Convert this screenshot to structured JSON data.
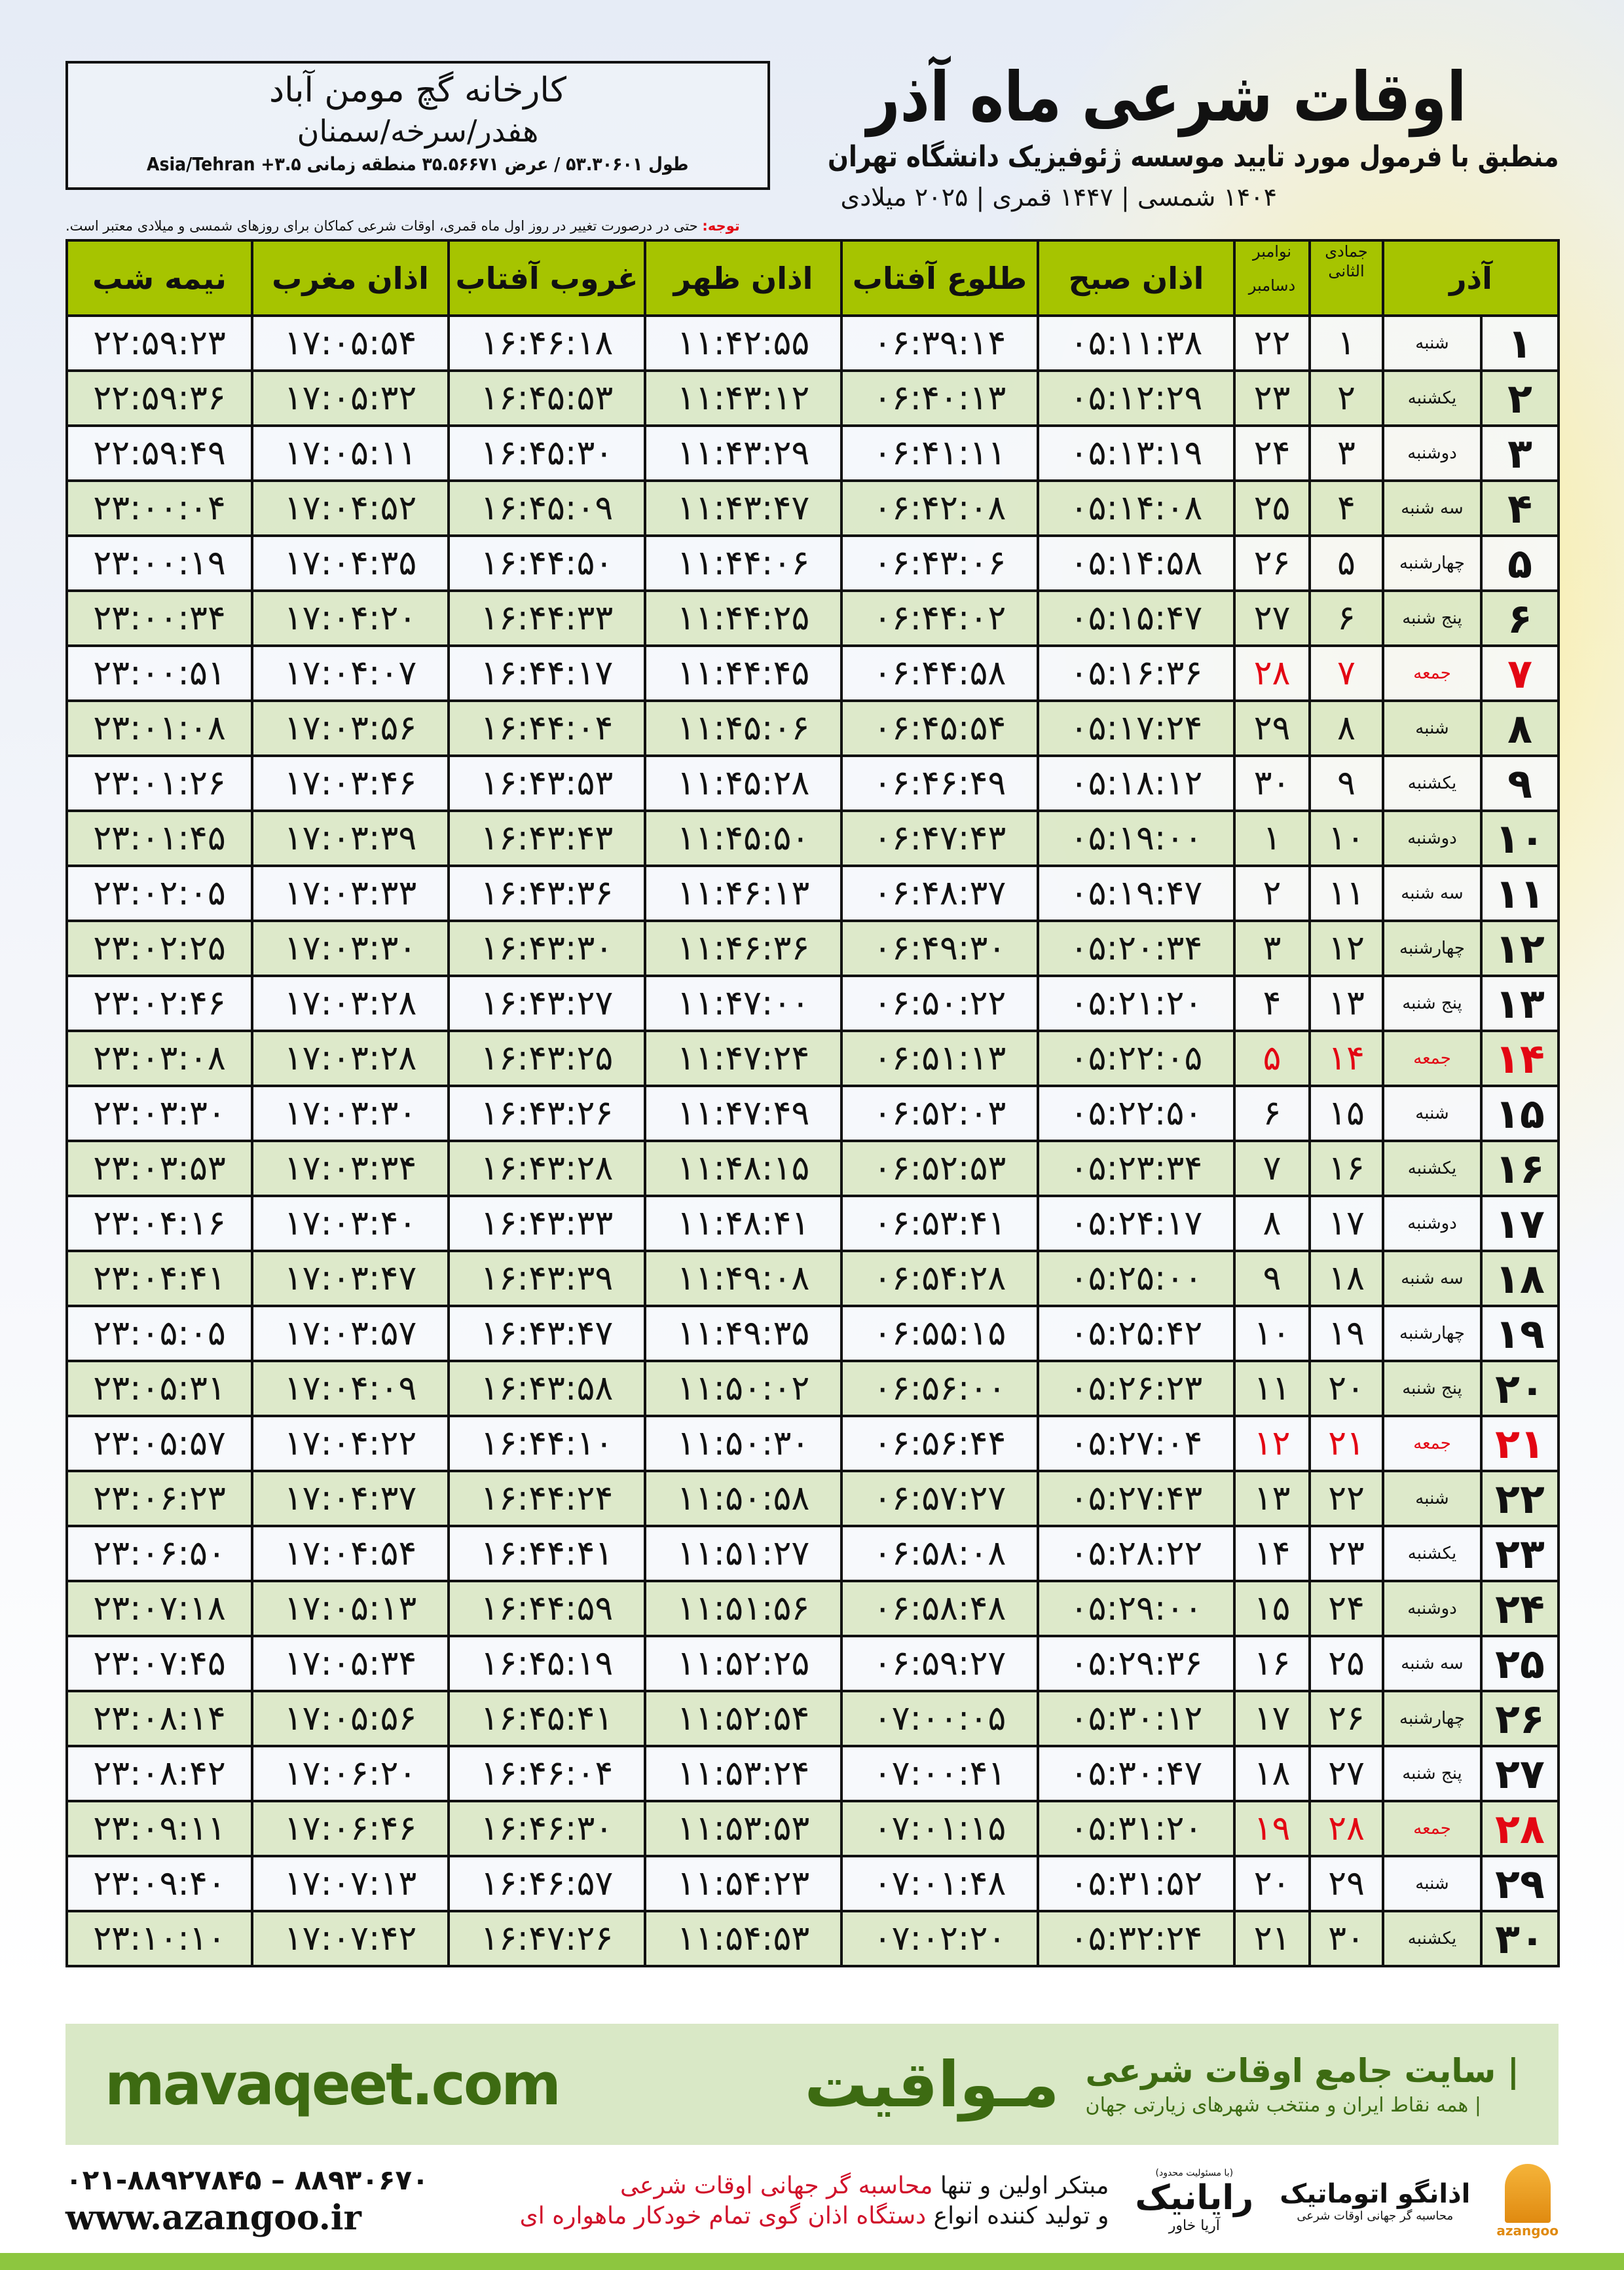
{
  "info": {
    "name": "کارخانه گچ مومن آباد",
    "region": "هفدر/سرخه/سمنان",
    "coords": "طول ۵۳.۳۰۶۰۱ / عرض ۳۵.۵۶۶۷۱ منطقه زمانی ۳.۵+ Asia/Tehran"
  },
  "header": {
    "title": "اوقات شرعی ماه آذر",
    "subtitle": "منطبق با فرمول مورد تایید موسسه ژئوفیزیک دانشگاه تهران",
    "years": "۱۴۰۴ شمسی | ۱۴۴۷ قمری | ۲۰۲۵ میلادی",
    "note_label": "توجه:",
    "note": " حتی در درصورت تغییر در روز اول ماه قمری، اوقات شرعی کماکان برای روزهای شمسی و میلادی معتبر است."
  },
  "colors": {
    "header_green": "#a6c400",
    "friday_red": "#e30613",
    "brand_green": "#3d6b12"
  },
  "table": {
    "columns": {
      "month": "آذر",
      "hijri": "جمادی الثانی",
      "greg_top": "نوامبر",
      "greg_bottom": "دسامبر",
      "fajr": "اذان صبح",
      "sunrise": "طلوع آفتاب",
      "dhuhr": "اذان ظهر",
      "sunset": "غروب آفتاب",
      "maghrib": "اذان مغرب",
      "midnight": "نیمه شب"
    },
    "rows": [
      [
        "۱",
        "شنبه",
        "۱",
        "۲۲",
        "۰۵:۱۱:۳۸",
        "۰۶:۳۹:۱۴",
        "۱۱:۴۲:۵۵",
        "۱۶:۴۶:۱۸",
        "۱۷:۰۵:۵۴",
        "۲۲:۵۹:۲۳"
      ],
      [
        "۲",
        "یکشنبه",
        "۲",
        "۲۳",
        "۰۵:۱۲:۲۹",
        "۰۶:۴۰:۱۳",
        "۱۱:۴۳:۱۲",
        "۱۶:۴۵:۵۳",
        "۱۷:۰۵:۳۲",
        "۲۲:۵۹:۳۶"
      ],
      [
        "۳",
        "دوشنبه",
        "۳",
        "۲۴",
        "۰۵:۱۳:۱۹",
        "۰۶:۴۱:۱۱",
        "۱۱:۴۳:۲۹",
        "۱۶:۴۵:۳۰",
        "۱۷:۰۵:۱۱",
        "۲۲:۵۹:۴۹"
      ],
      [
        "۴",
        "سه شنبه",
        "۴",
        "۲۵",
        "۰۵:۱۴:۰۸",
        "۰۶:۴۲:۰۸",
        "۱۱:۴۳:۴۷",
        "۱۶:۴۵:۰۹",
        "۱۷:۰۴:۵۲",
        "۲۳:۰۰:۰۴"
      ],
      [
        "۵",
        "چهارشنبه",
        "۵",
        "۲۶",
        "۰۵:۱۴:۵۸",
        "۰۶:۴۳:۰۶",
        "۱۱:۴۴:۰۶",
        "۱۶:۴۴:۵۰",
        "۱۷:۰۴:۳۵",
        "۲۳:۰۰:۱۹"
      ],
      [
        "۶",
        "پنج شنبه",
        "۶",
        "۲۷",
        "۰۵:۱۵:۴۷",
        "۰۶:۴۴:۰۲",
        "۱۱:۴۴:۲۵",
        "۱۶:۴۴:۳۳",
        "۱۷:۰۴:۲۰",
        "۲۳:۰۰:۳۴"
      ],
      [
        "۷",
        "جمعه",
        "۷",
        "۲۸",
        "۰۵:۱۶:۳۶",
        "۰۶:۴۴:۵۸",
        "۱۱:۴۴:۴۵",
        "۱۶:۴۴:۱۷",
        "۱۷:۰۴:۰۷",
        "۲۳:۰۰:۵۱"
      ],
      [
        "۸",
        "شنبه",
        "۸",
        "۲۹",
        "۰۵:۱۷:۲۴",
        "۰۶:۴۵:۵۴",
        "۱۱:۴۵:۰۶",
        "۱۶:۴۴:۰۴",
        "۱۷:۰۳:۵۶",
        "۲۳:۰۱:۰۸"
      ],
      [
        "۹",
        "یکشنبه",
        "۹",
        "۳۰",
        "۰۵:۱۸:۱۲",
        "۰۶:۴۶:۴۹",
        "۱۱:۴۵:۲۸",
        "۱۶:۴۳:۵۳",
        "۱۷:۰۳:۴۶",
        "۲۳:۰۱:۲۶"
      ],
      [
        "۱۰",
        "دوشنبه",
        "۱۰",
        "۱",
        "۰۵:۱۹:۰۰",
        "۰۶:۴۷:۴۳",
        "۱۱:۴۵:۵۰",
        "۱۶:۴۳:۴۳",
        "۱۷:۰۳:۳۹",
        "۲۳:۰۱:۴۵"
      ],
      [
        "۱۱",
        "سه شنبه",
        "۱۱",
        "۲",
        "۰۵:۱۹:۴۷",
        "۰۶:۴۸:۳۷",
        "۱۱:۴۶:۱۳",
        "۱۶:۴۳:۳۶",
        "۱۷:۰۳:۳۳",
        "۲۳:۰۲:۰۵"
      ],
      [
        "۱۲",
        "چهارشنبه",
        "۱۲",
        "۳",
        "۰۵:۲۰:۳۴",
        "۰۶:۴۹:۳۰",
        "۱۱:۴۶:۳۶",
        "۱۶:۴۳:۳۰",
        "۱۷:۰۳:۳۰",
        "۲۳:۰۲:۲۵"
      ],
      [
        "۱۳",
        "پنج شنبه",
        "۱۳",
        "۴",
        "۰۵:۲۱:۲۰",
        "۰۶:۵۰:۲۲",
        "۱۱:۴۷:۰۰",
        "۱۶:۴۳:۲۷",
        "۱۷:۰۳:۲۸",
        "۲۳:۰۲:۴۶"
      ],
      [
        "۱۴",
        "جمعه",
        "۱۴",
        "۵",
        "۰۵:۲۲:۰۵",
        "۰۶:۵۱:۱۳",
        "۱۱:۴۷:۲۴",
        "۱۶:۴۳:۲۵",
        "۱۷:۰۳:۲۸",
        "۲۳:۰۳:۰۸"
      ],
      [
        "۱۵",
        "شنبه",
        "۱۵",
        "۶",
        "۰۵:۲۲:۵۰",
        "۰۶:۵۲:۰۳",
        "۱۱:۴۷:۴۹",
        "۱۶:۴۳:۲۶",
        "۱۷:۰۳:۳۰",
        "۲۳:۰۳:۳۰"
      ],
      [
        "۱۶",
        "یکشنبه",
        "۱۶",
        "۷",
        "۰۵:۲۳:۳۴",
        "۰۶:۵۲:۵۳",
        "۱۱:۴۸:۱۵",
        "۱۶:۴۳:۲۸",
        "۱۷:۰۳:۳۴",
        "۲۳:۰۳:۵۳"
      ],
      [
        "۱۷",
        "دوشنبه",
        "۱۷",
        "۸",
        "۰۵:۲۴:۱۷",
        "۰۶:۵۳:۴۱",
        "۱۱:۴۸:۴۱",
        "۱۶:۴۳:۳۳",
        "۱۷:۰۳:۴۰",
        "۲۳:۰۴:۱۶"
      ],
      [
        "۱۸",
        "سه شنبه",
        "۱۸",
        "۹",
        "۰۵:۲۵:۰۰",
        "۰۶:۵۴:۲۸",
        "۱۱:۴۹:۰۸",
        "۱۶:۴۳:۳۹",
        "۱۷:۰۳:۴۷",
        "۲۳:۰۴:۴۱"
      ],
      [
        "۱۹",
        "چهارشنبه",
        "۱۹",
        "۱۰",
        "۰۵:۲۵:۴۲",
        "۰۶:۵۵:۱۵",
        "۱۱:۴۹:۳۵",
        "۱۶:۴۳:۴۷",
        "۱۷:۰۳:۵۷",
        "۲۳:۰۵:۰۵"
      ],
      [
        "۲۰",
        "پنج شنبه",
        "۲۰",
        "۱۱",
        "۰۵:۲۶:۲۳",
        "۰۶:۵۶:۰۰",
        "۱۱:۵۰:۰۲",
        "۱۶:۴۳:۵۸",
        "۱۷:۰۴:۰۹",
        "۲۳:۰۵:۳۱"
      ],
      [
        "۲۱",
        "جمعه",
        "۲۱",
        "۱۲",
        "۰۵:۲۷:۰۴",
        "۰۶:۵۶:۴۴",
        "۱۱:۵۰:۳۰",
        "۱۶:۴۴:۱۰",
        "۱۷:۰۴:۲۲",
        "۲۳:۰۵:۵۷"
      ],
      [
        "۲۲",
        "شنبه",
        "۲۲",
        "۱۳",
        "۰۵:۲۷:۴۳",
        "۰۶:۵۷:۲۷",
        "۱۱:۵۰:۵۸",
        "۱۶:۴۴:۲۴",
        "۱۷:۰۴:۳۷",
        "۲۳:۰۶:۲۳"
      ],
      [
        "۲۳",
        "یکشنبه",
        "۲۳",
        "۱۴",
        "۰۵:۲۸:۲۲",
        "۰۶:۵۸:۰۸",
        "۱۱:۵۱:۲۷",
        "۱۶:۴۴:۴۱",
        "۱۷:۰۴:۵۴",
        "۲۳:۰۶:۵۰"
      ],
      [
        "۲۴",
        "دوشنبه",
        "۲۴",
        "۱۵",
        "۰۵:۲۹:۰۰",
        "۰۶:۵۸:۴۸",
        "۱۱:۵۱:۵۶",
        "۱۶:۴۴:۵۹",
        "۱۷:۰۵:۱۳",
        "۲۳:۰۷:۱۸"
      ],
      [
        "۲۵",
        "سه شنبه",
        "۲۵",
        "۱۶",
        "۰۵:۲۹:۳۶",
        "۰۶:۵۹:۲۷",
        "۱۱:۵۲:۲۵",
        "۱۶:۴۵:۱۹",
        "۱۷:۰۵:۳۴",
        "۲۳:۰۷:۴۵"
      ],
      [
        "۲۶",
        "چهارشنبه",
        "۲۶",
        "۱۷",
        "۰۵:۳۰:۱۲",
        "۰۷:۰۰:۰۵",
        "۱۱:۵۲:۵۴",
        "۱۶:۴۵:۴۱",
        "۱۷:۰۵:۵۶",
        "۲۳:۰۸:۱۴"
      ],
      [
        "۲۷",
        "پنج شنبه",
        "۲۷",
        "۱۸",
        "۰۵:۳۰:۴۷",
        "۰۷:۰۰:۴۱",
        "۱۱:۵۳:۲۴",
        "۱۶:۴۶:۰۴",
        "۱۷:۰۶:۲۰",
        "۲۳:۰۸:۴۲"
      ],
      [
        "۲۸",
        "جمعه",
        "۲۸",
        "۱۹",
        "۰۵:۳۱:۲۰",
        "۰۷:۰۱:۱۵",
        "۱۱:۵۳:۵۳",
        "۱۶:۴۶:۳۰",
        "۱۷:۰۶:۴۶",
        "۲۳:۰۹:۱۱"
      ],
      [
        "۲۹",
        "شنبه",
        "۲۹",
        "۲۰",
        "۰۵:۳۱:۵۲",
        "۰۷:۰۱:۴۸",
        "۱۱:۵۴:۲۳",
        "۱۶:۴۶:۵۷",
        "۱۷:۰۷:۱۳",
        "۲۳:۰۹:۴۰"
      ],
      [
        "۳۰",
        "یکشنبه",
        "۳۰",
        "۲۱",
        "۰۵:۳۲:۲۴",
        "۰۷:۰۲:۲۰",
        "۱۱:۵۴:۵۳",
        "۱۶:۴۷:۲۶",
        "۱۷:۰۷:۴۲",
        "۲۳:۱۰:۱۰"
      ]
    ]
  },
  "footer": {
    "brand": "مـواقیت",
    "brand_tagline": "| سایت جامع اوقات شرعی",
    "brand_tagline2": "| همه نقاط ایران و منتخب شهرهای زیارتی جهان",
    "site": "mavaqeet.com",
    "phones": "۰۲۱-۸۸۹۲۷۸۴۵ – ۸۸۹۳۰۶۷۰",
    "web": "www.azangoo.ir",
    "promo_1a": "مبتکر اولین و تنها ",
    "promo_1b": "محاسبه گر جهانی اوقات شرعی",
    "promo_2a": "و تولید کننده انواع ",
    "promo_2b": "دستگاه اذان گوی تمام خودکار ماهواره ای",
    "rayanik_small": "(با مسئولیت محدود)",
    "rayanik": "رایانیک",
    "rayanik_sub": "آریا خاور",
    "azangoo": "اذانگو اتوماتیک",
    "azangoo_sub": "محاسبه گر جهانی اوقات شرعی",
    "azangoo_logo_text": "azangoo"
  }
}
